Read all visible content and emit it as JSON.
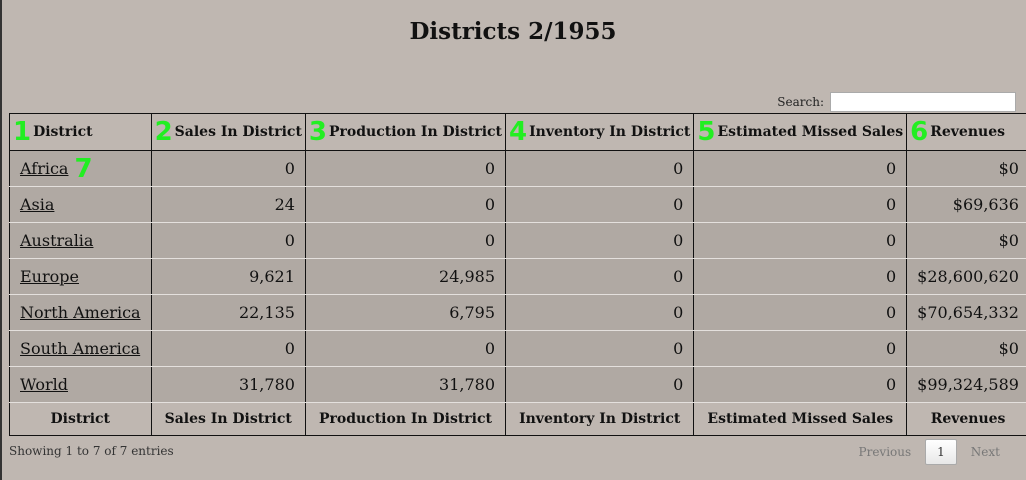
{
  "title": "Districts 2/1955",
  "search": {
    "label": "Search:",
    "value": ""
  },
  "columns": [
    "District",
    "Sales In District",
    "Production In District",
    "Inventory In District",
    "Estimated Missed Sales",
    "Revenues"
  ],
  "markers": [
    "1",
    "2",
    "3",
    "4",
    "5",
    "6",
    "7"
  ],
  "rows": [
    [
      "Africa",
      "0",
      "0",
      "0",
      "0",
      "$0"
    ],
    [
      "Asia",
      "24",
      "0",
      "0",
      "0",
      "$69,636"
    ],
    [
      "Australia",
      "0",
      "0",
      "0",
      "0",
      "$0"
    ],
    [
      "Europe",
      "9,621",
      "24,985",
      "0",
      "0",
      "$28,600,620"
    ],
    [
      "North America",
      "22,135",
      "6,795",
      "0",
      "0",
      "$70,654,332"
    ],
    [
      "South America",
      "0",
      "0",
      "0",
      "0",
      "$0"
    ],
    [
      "World",
      "31,780",
      "31,780",
      "0",
      "0",
      "$99,324,589"
    ]
  ],
  "info": "Showing 1 to 7 of 7 entries",
  "pager": {
    "previous": "Previous",
    "current": "1",
    "next": "Next"
  }
}
